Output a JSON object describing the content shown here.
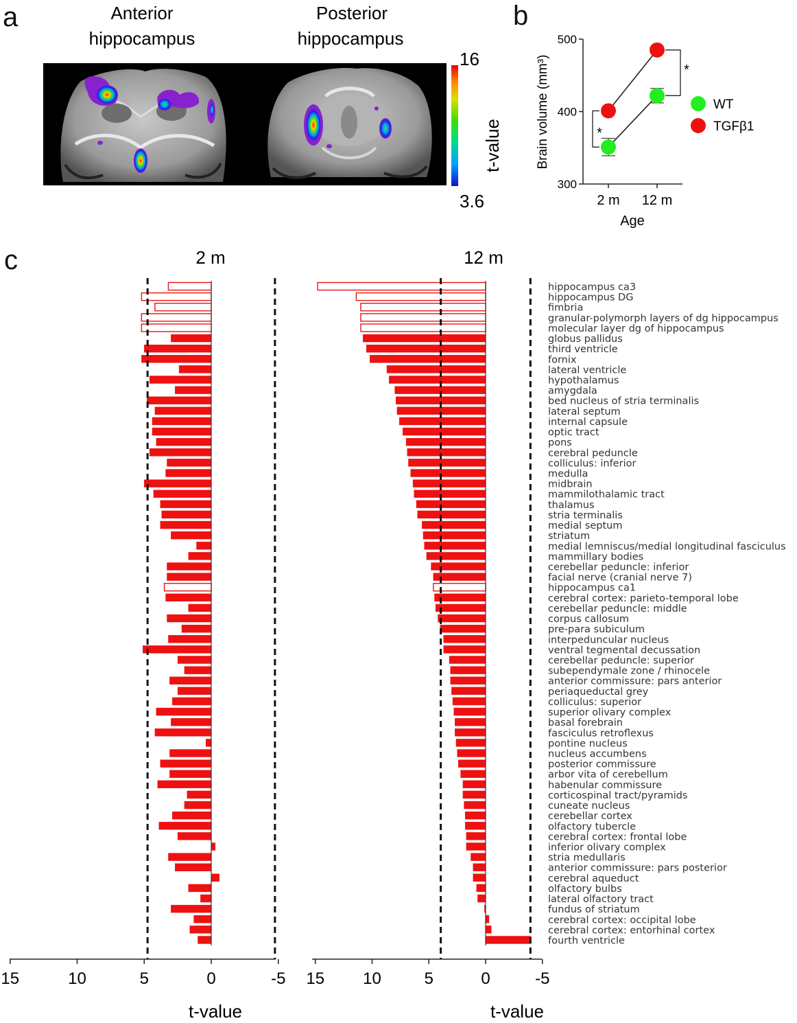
{
  "panels": {
    "a": {
      "letter": "a",
      "left_title": [
        "Anterior",
        "hippocampus"
      ],
      "right_title": [
        "Posterior",
        "hippocampus"
      ],
      "colorbar": {
        "max_label": "16",
        "min_label": "3.6",
        "label": "t-value",
        "min": 3.6,
        "max": 16
      }
    },
    "b": {
      "letter": "b"
    },
    "c": {
      "letter": "c",
      "left_title": "2 m",
      "right_title": "12 m",
      "xlabel": "t-value"
    }
  },
  "chart_data": [
    {
      "type": "line",
      "panel": "b",
      "ylabel": "Brain volume (mm³)",
      "xlabel": "Age",
      "categories": [
        "2 m",
        "12 m"
      ],
      "ylim": [
        300,
        500
      ],
      "yticks": [
        300,
        400,
        500
      ],
      "series": [
        {
          "name": "WT",
          "color": "#22ee22",
          "values": [
            351,
            422
          ],
          "errors": [
            12,
            10
          ]
        },
        {
          "name": "TGFβ1",
          "color": "#ee1111",
          "values": [
            401,
            485
          ],
          "errors": [
            3,
            3
          ]
        }
      ],
      "significance": [
        {
          "category": "2 m",
          "mark": "*"
        },
        {
          "category": "12 m",
          "mark": "*"
        }
      ]
    },
    {
      "type": "bar",
      "panel": "c",
      "orientation": "horizontal",
      "xaxis_reversed": true,
      "xlim": [
        15,
        -5
      ],
      "xticks": [
        15,
        10,
        5,
        0,
        -5
      ],
      "bar_color": "#ee1111",
      "categories": [
        "hippocampus ca3",
        "hippocampus DG",
        "fimbria",
        "granular-polymorph layers of dg hippocampus",
        "molecular layer dg of hippocampus",
        "globus pallidus",
        "third ventricle",
        "fornix",
        "lateral ventricle",
        "hypothalamus",
        "amygdala",
        "bed nucleus of stria terminalis",
        "lateral septum",
        "internal capsule",
        "optic tract",
        "pons",
        "cerebral peduncle",
        "colliculus: inferior",
        "medulla",
        "midbrain",
        "mammilothalamic tract",
        "thalamus",
        "stria terminalis",
        "medial septum",
        "striatum",
        "medial lemniscus/medial longitudinal fasciculus",
        "mammillary bodies",
        "cerebellar peduncle: inferior",
        "facial nerve (cranial nerve 7)",
        "hippocampus ca1",
        "cerebral cortex: parieto-temporal lobe",
        "cerebellar peduncle: middle",
        "corpus callosum",
        "pre-para subiculum",
        "interpeduncular nucleus",
        "ventral tegmental decussation",
        "cerebellar peduncle: superior",
        "subependymale zone / rhinocele",
        "anterior commissure: pars anterior",
        "periaqueductal grey",
        "colliculus: superior",
        "superior olivary complex",
        "basal forebrain",
        "fasciculus retroflexus",
        "pontine nucleus",
        "nucleus accumbens",
        "posterior commissure",
        "arbor vita of cerebellum",
        "habenular commissure",
        "corticospinal tract/pyramids",
        "cuneate nucleus",
        "cerebellar cortex",
        "olfactory tubercle",
        "cerebral cortex: frontal lobe",
        "inferior olivary complex",
        "stria medullaris",
        "anterior commissure: pars posterior",
        "cerebral aqueduct",
        "olfactory bulbs",
        "lateral olfactory tract",
        "fundus of striatum",
        "cerebral cortex: occipital lobe",
        "cerebral cortex: entorhinal cortex",
        "fourth ventricle"
      ],
      "hollow_categories": [
        "hippocampus ca3",
        "hippocampus DG",
        "fimbria",
        "granular-polymorph layers of dg hippocampus",
        "molecular layer dg of hippocampus",
        "hippocampus ca1"
      ],
      "series": [
        {
          "name": "2 m",
          "threshold": 4.75,
          "values": [
            3.2,
            5.2,
            4.2,
            5.2,
            5.2,
            3.0,
            5.0,
            5.2,
            2.4,
            4.6,
            2.7,
            4.8,
            4.2,
            4.4,
            4.4,
            4.1,
            4.6,
            3.3,
            3.4,
            5.0,
            4.3,
            3.8,
            3.7,
            3.8,
            3.0,
            1.1,
            1.7,
            3.3,
            3.3,
            3.5,
            3.4,
            1.7,
            3.3,
            2.2,
            3.2,
            5.1,
            2.5,
            2.0,
            3.1,
            2.5,
            2.9,
            4.1,
            3.0,
            4.2,
            0.4,
            3.1,
            3.8,
            3.1,
            4.0,
            1.8,
            2.0,
            2.9,
            3.9,
            2.5,
            -0.3,
            3.2,
            2.7,
            -0.6,
            1.7,
            0.8,
            3.0,
            1.3,
            1.6,
            1.0
          ]
        },
        {
          "name": "12 m",
          "threshold": 3.95,
          "values": [
            14.8,
            11.4,
            11.0,
            11.0,
            11.0,
            10.8,
            10.5,
            10.2,
            8.7,
            8.5,
            8.0,
            7.9,
            7.8,
            7.6,
            7.3,
            7.0,
            6.9,
            6.8,
            6.6,
            6.4,
            6.3,
            6.1,
            6.0,
            5.6,
            5.5,
            5.4,
            5.2,
            4.8,
            4.6,
            4.6,
            4.5,
            4.4,
            4.2,
            4.0,
            3.7,
            3.7,
            3.2,
            3.1,
            3.1,
            3.0,
            2.9,
            2.8,
            2.7,
            2.7,
            2.6,
            2.5,
            2.4,
            2.2,
            2.0,
            2.0,
            1.9,
            1.8,
            1.8,
            1.7,
            1.7,
            1.3,
            1.1,
            1.1,
            0.8,
            0.7,
            0.1,
            -0.3,
            -0.5,
            -4.0
          ]
        }
      ]
    }
  ]
}
